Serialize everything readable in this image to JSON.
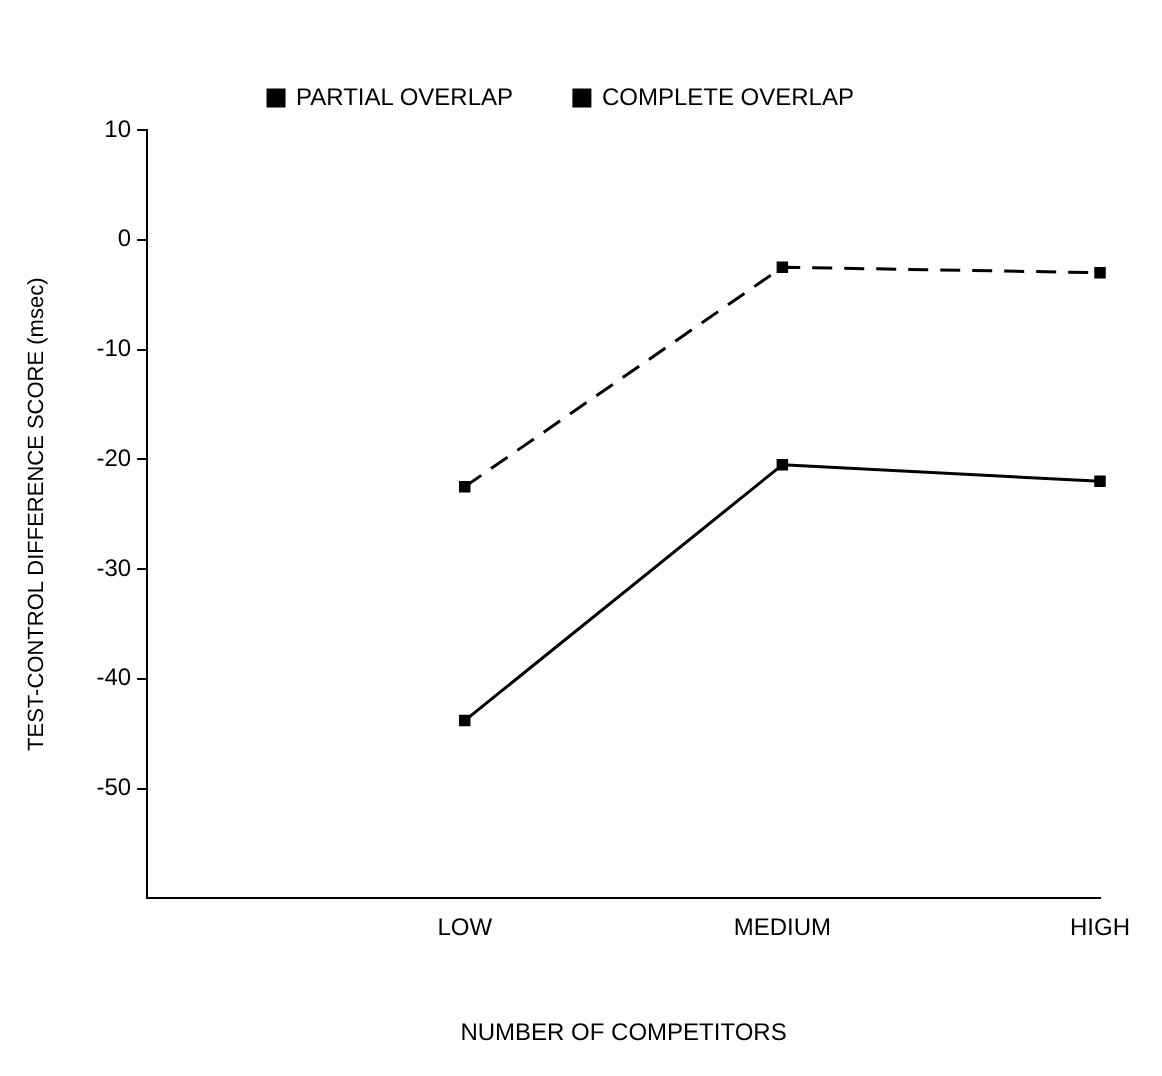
{
  "chart_data": {
    "type": "line",
    "xlabel": "NUMBER OF COMPETITORS",
    "ylabel": "TEST-CONTROL DIFFERENCE SCORE (msec)",
    "categories": [
      null,
      "LOW",
      "MEDIUM",
      "HIGH"
    ],
    "series": [
      {
        "name": "PARTIAL OVERLAP",
        "color": "#000000",
        "line_style": "dashed",
        "values": [
          null,
          -22.5,
          -2.5,
          -3
        ]
      },
      {
        "name": "COMPLETE OVERLAP",
        "color": "#000000",
        "line_style": "solid",
        "values": [
          null,
          -43.8,
          -20.5,
          -22
        ]
      }
    ],
    "ylim": [
      -60,
      10
    ],
    "yticks": [
      10,
      0,
      -10,
      -20,
      -30,
      -40,
      -50
    ],
    "grid": false,
    "legend": "top",
    "marker": "square"
  }
}
